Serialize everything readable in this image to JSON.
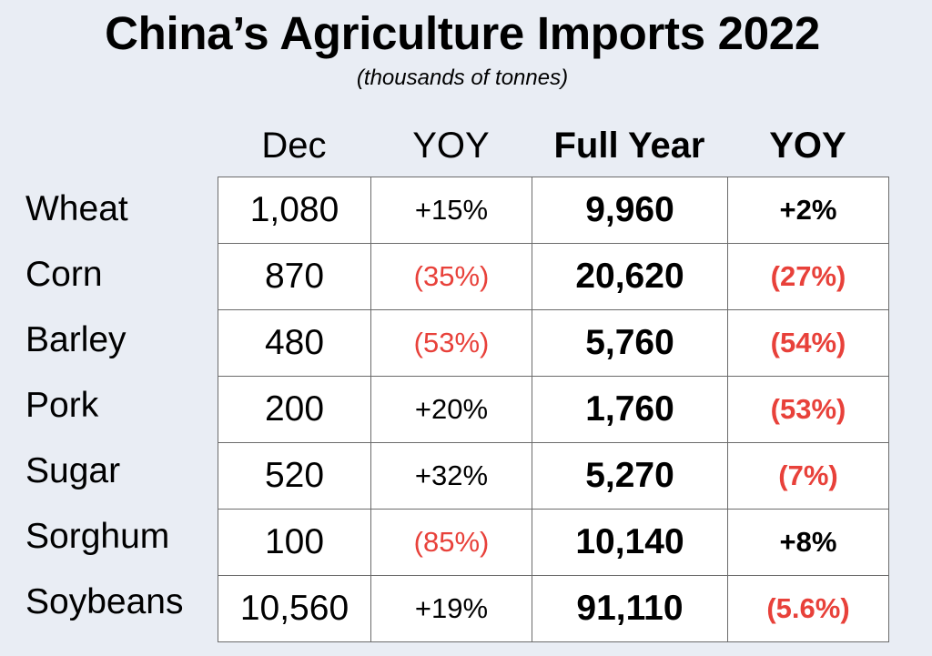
{
  "title": "China’s Agriculture Imports 2022",
  "subtitle": "(thousands of tonnes)",
  "colors": {
    "background": "#e9edf4",
    "table_fill": "#ffffff",
    "negative": "#e8413a",
    "positive": "#000000",
    "grid_line": "#6b6b6b"
  },
  "chart_data": {
    "type": "table",
    "title": "China’s Agriculture Imports 2022",
    "subtitle": "(thousands of tonnes)",
    "columns": [
      "Dec",
      "YOY",
      "Full Year",
      "YOY"
    ],
    "rows": [
      {
        "label": "Wheat",
        "dec": "1,080",
        "dec_yoy": "+15%",
        "full_year": "9,960",
        "full_yoy": "+2%",
        "dec_yoy_negative": false,
        "full_yoy_negative": false
      },
      {
        "label": "Corn",
        "dec": "870",
        "dec_yoy": "(35%)",
        "full_year": "20,620",
        "full_yoy": "(27%)",
        "dec_yoy_negative": true,
        "full_yoy_negative": true
      },
      {
        "label": "Barley",
        "dec": "480",
        "dec_yoy": "(53%)",
        "full_year": "5,760",
        "full_yoy": "(54%)",
        "dec_yoy_negative": true,
        "full_yoy_negative": true
      },
      {
        "label": "Pork",
        "dec": "200",
        "dec_yoy": "+20%",
        "full_year": "1,760",
        "full_yoy": "(53%)",
        "dec_yoy_negative": false,
        "full_yoy_negative": true
      },
      {
        "label": "Sugar",
        "dec": "520",
        "dec_yoy": "+32%",
        "full_year": "5,270",
        "full_yoy": "(7%)",
        "dec_yoy_negative": false,
        "full_yoy_negative": true
      },
      {
        "label": "Sorghum",
        "dec": "100",
        "dec_yoy": "(85%)",
        "full_year": "10,140",
        "full_yoy": "+8%",
        "dec_yoy_negative": true,
        "full_yoy_negative": false
      },
      {
        "label": "Soybeans",
        "dec": "10,560",
        "dec_yoy": "+19%",
        "full_year": "91,110",
        "full_yoy": "(5.6%)",
        "dec_yoy_negative": false,
        "full_yoy_negative": true
      }
    ]
  }
}
